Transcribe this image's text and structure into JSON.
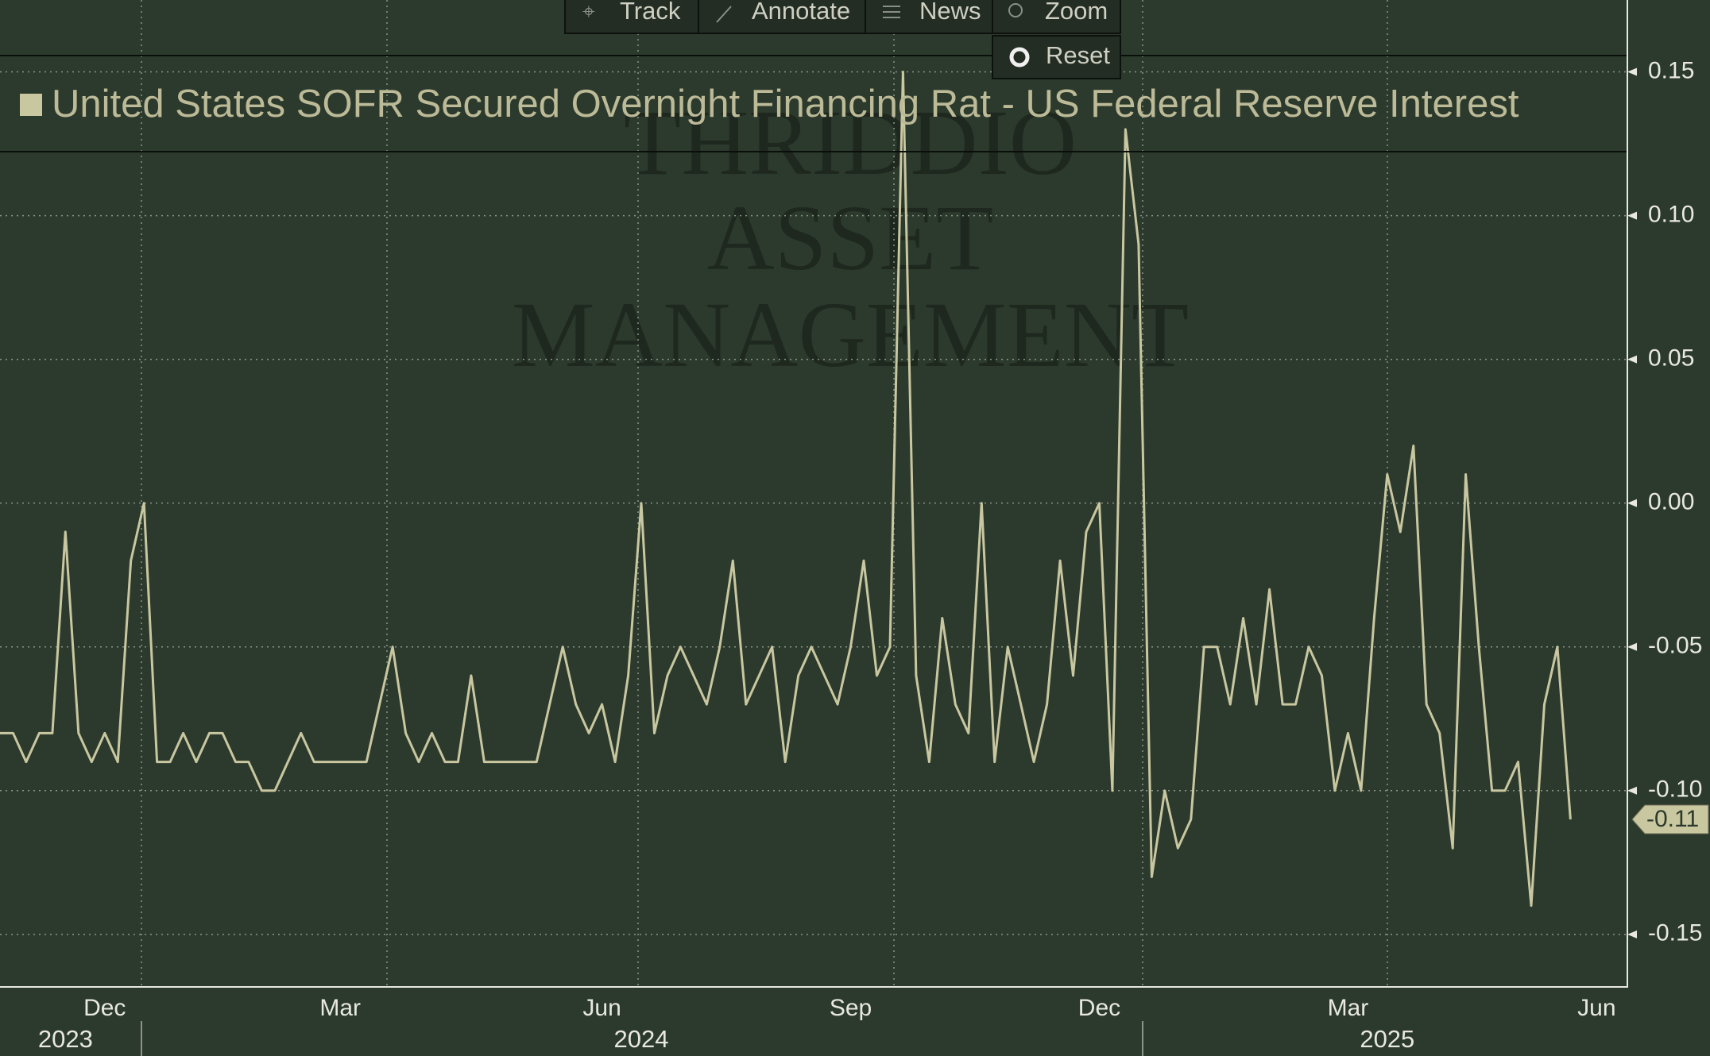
{
  "toolbar": {
    "track": "Track",
    "annotate": "Annotate",
    "news": "News",
    "zoom": "Zoom",
    "reset": "Reset"
  },
  "watermark": [
    "THRIDDIO",
    "ASSET",
    "MANAGEMENT"
  ],
  "chart_data": {
    "type": "line",
    "categories": [
      null,
      null,
      null,
      null,
      null,
      null,
      null,
      null,
      "Dec",
      null,
      null,
      null,
      null,
      null,
      null,
      null,
      null,
      null,
      null,
      null,
      null,
      null,
      null,
      null,
      null,
      null,
      "Mar",
      null,
      null,
      null,
      null,
      null,
      null,
      null,
      null,
      null,
      null,
      null,
      null,
      null,
      null,
      null,
      null,
      null,
      null,
      null,
      "Jun",
      null,
      null,
      null,
      null,
      null,
      null,
      null,
      null,
      null,
      null,
      null,
      null,
      null,
      null,
      null,
      null,
      null,
      null,
      "Sep",
      null,
      null,
      null,
      null,
      null,
      null,
      null,
      null,
      null,
      null,
      null,
      null,
      null,
      null,
      null,
      null,
      null,
      null,
      "Dec",
      null,
      null,
      null,
      null,
      null,
      null,
      null,
      null,
      null,
      null,
      null,
      null,
      null,
      null,
      null,
      null,
      null,
      null,
      "Mar",
      null,
      null,
      null,
      null,
      null,
      null,
      null,
      null,
      null,
      null,
      null,
      null,
      null,
      null,
      null,
      null,
      null,
      null,
      "Jun"
    ],
    "year_labels": [
      null,
      null,
      null,
      null,
      null,
      "2023",
      null,
      null,
      null,
      null,
      null,
      null,
      null,
      null,
      null,
      null,
      null,
      null,
      null,
      null,
      null,
      null,
      null,
      null,
      null,
      null,
      null,
      null,
      null,
      null,
      null,
      null,
      null,
      null,
      null,
      null,
      null,
      null,
      null,
      null,
      null,
      null,
      null,
      null,
      null,
      null,
      null,
      null,
      null,
      "2024",
      null,
      null,
      null,
      null,
      null,
      null,
      null,
      null,
      null,
      null,
      null,
      null,
      null,
      null,
      null,
      null,
      null,
      null,
      null,
      null,
      null,
      null,
      null,
      null,
      null,
      null,
      null,
      null,
      null,
      null,
      null,
      null,
      null,
      null,
      null,
      null,
      null,
      null,
      null,
      null,
      null,
      null,
      null,
      null,
      null,
      null,
      null,
      null,
      null,
      null,
      null,
      null,
      null,
      null,
      null,
      null,
      "2025",
      null,
      null,
      null,
      null,
      null,
      null,
      null,
      null,
      null,
      null,
      null,
      null,
      null,
      null,
      null,
      null
    ],
    "series": [
      {
        "name": "United States SOFR Secured Overnight Financing Rat - US Federal Reserve Interest",
        "color": "#c9c7a0",
        "values": [
          -0.08,
          -0.08,
          -0.09,
          -0.08,
          -0.08,
          -0.01,
          -0.08,
          -0.09,
          -0.08,
          -0.09,
          -0.02,
          0,
          -0.09,
          -0.09,
          -0.08,
          -0.09,
          -0.08,
          -0.08,
          -0.09,
          -0.09,
          -0.1,
          -0.1,
          -0.09,
          -0.08,
          -0.09,
          -0.09,
          -0.09,
          -0.09,
          -0.09,
          -0.07,
          -0.05,
          -0.08,
          -0.09,
          -0.08,
          -0.09,
          -0.09,
          -0.06,
          -0.09,
          -0.09,
          -0.09,
          -0.09,
          -0.09,
          -0.07,
          -0.05,
          -0.07,
          -0.08,
          -0.07,
          -0.09,
          -0.06,
          0,
          -0.08,
          -0.06,
          -0.05,
          -0.06,
          -0.07,
          -0.05,
          -0.02,
          -0.07,
          -0.06,
          -0.05,
          -0.09,
          -0.06,
          -0.05,
          -0.06,
          -0.07,
          -0.05,
          -0.02,
          -0.06,
          -0.05,
          0.15,
          -0.06,
          -0.09,
          -0.04,
          -0.07,
          -0.08,
          0,
          -0.09,
          -0.05,
          -0.07,
          -0.09,
          -0.07,
          -0.02,
          -0.06,
          -0.01,
          0,
          -0.1,
          0.13,
          0.09,
          -0.13,
          -0.1,
          -0.12,
          -0.11,
          -0.05,
          -0.05,
          -0.07,
          -0.04,
          -0.07,
          -0.03,
          -0.07,
          -0.07,
          -0.05,
          -0.06,
          -0.1,
          -0.08,
          -0.1,
          -0.04,
          0.01,
          -0.01,
          0.02,
          -0.07,
          -0.08,
          -0.12,
          0.01,
          -0.05,
          -0.1,
          -0.1,
          -0.09,
          -0.14,
          -0.07,
          -0.05,
          -0.11,
          null,
          null
        ]
      }
    ],
    "ylim": [
      -0.168,
      0.175
    ],
    "yticks": [
      0.15,
      {
        "value": 0.1,
        "label": "0.10"
      },
      0.05,
      {
        "value": 0,
        "label": "0.00"
      },
      -0.05,
      {
        "value": -0.1,
        "label": "-0.10"
      },
      -0.15
    ],
    "grid": true
  }
}
